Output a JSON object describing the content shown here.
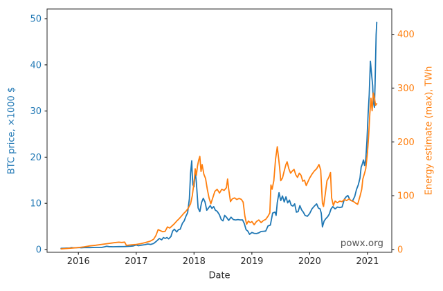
{
  "figure": {
    "watermark": "powx.org",
    "background_color": "#ffffff"
  },
  "chart_data": {
    "type": "line",
    "title": "",
    "xlabel": "Date",
    "ylabel_left": "BTC price, ×1000 $",
    "ylabel_right": "Energy estimate (max), TWh",
    "x_ticks": [
      2016,
      2017,
      2018,
      2019,
      2020,
      2021
    ],
    "y_ticks_left": [
      0,
      10,
      20,
      30,
      40,
      50
    ],
    "y_ticks_right": [
      0,
      100,
      200,
      300,
      400
    ],
    "xlim": [
      2015.458,
      2021.42
    ],
    "ylim_left": [
      -0.6,
      52.1
    ],
    "ylim_right": [
      -5.1,
      447
    ],
    "grid": false,
    "legend": "none",
    "colors": {
      "btc": "#1f77b4",
      "energy": "#ff7f0e",
      "axis": "#262626",
      "watermark": "#555555"
    },
    "series": [
      {
        "name": "BTC price, ×1000 $",
        "axis": "left",
        "color_key": "btc",
        "points": [
          [
            2015.7,
            0.25
          ],
          [
            2015.75,
            0.28
          ],
          [
            2015.8,
            0.31
          ],
          [
            2015.85,
            0.33
          ],
          [
            2015.88,
            0.42
          ],
          [
            2015.92,
            0.36
          ],
          [
            2016.0,
            0.43
          ],
          [
            2016.05,
            0.38
          ],
          [
            2016.1,
            0.42
          ],
          [
            2016.2,
            0.42
          ],
          [
            2016.3,
            0.45
          ],
          [
            2016.4,
            0.45
          ],
          [
            2016.45,
            0.58
          ],
          [
            2016.49,
            0.7
          ],
          [
            2016.53,
            0.63
          ],
          [
            2016.6,
            0.6
          ],
          [
            2016.65,
            0.61
          ],
          [
            2016.7,
            0.63
          ],
          [
            2016.8,
            0.64
          ],
          [
            2016.9,
            0.72
          ],
          [
            2016.95,
            0.78
          ],
          [
            2017.0,
            0.99
          ],
          [
            2017.04,
            0.82
          ],
          [
            2017.08,
            0.92
          ],
          [
            2017.15,
            1.05
          ],
          [
            2017.2,
            1.19
          ],
          [
            2017.25,
            1.1
          ],
          [
            2017.3,
            1.3
          ],
          [
            2017.35,
            1.8
          ],
          [
            2017.4,
            2.4
          ],
          [
            2017.44,
            2.1
          ],
          [
            2017.47,
            2.6
          ],
          [
            2017.5,
            2.4
          ],
          [
            2017.53,
            2.6
          ],
          [
            2017.56,
            2.3
          ],
          [
            2017.6,
            2.8
          ],
          [
            2017.63,
            4.0
          ],
          [
            2017.66,
            4.4
          ],
          [
            2017.7,
            3.8
          ],
          [
            2017.73,
            4.3
          ],
          [
            2017.76,
            4.4
          ],
          [
            2017.8,
            5.7
          ],
          [
            2017.83,
            6.2
          ],
          [
            2017.86,
            7.2
          ],
          [
            2017.89,
            8.0
          ],
          [
            2017.92,
            11.0
          ],
          [
            2017.94,
            16.5
          ],
          [
            2017.96,
            19.2
          ],
          [
            2017.97,
            16.0
          ],
          [
            2017.98,
            14.0
          ],
          [
            2018.0,
            13.6
          ],
          [
            2018.02,
            17.0
          ],
          [
            2018.04,
            14.5
          ],
          [
            2018.07,
            9.0
          ],
          [
            2018.1,
            8.2
          ],
          [
            2018.13,
            10.2
          ],
          [
            2018.16,
            11.1
          ],
          [
            2018.19,
            10.3
          ],
          [
            2018.22,
            8.5
          ],
          [
            2018.25,
            9.0
          ],
          [
            2018.28,
            9.5
          ],
          [
            2018.31,
            8.9
          ],
          [
            2018.34,
            9.3
          ],
          [
            2018.37,
            8.5
          ],
          [
            2018.4,
            8.3
          ],
          [
            2018.44,
            7.5
          ],
          [
            2018.47,
            6.5
          ],
          [
            2018.5,
            6.2
          ],
          [
            2018.53,
            7.4
          ],
          [
            2018.56,
            7.0
          ],
          [
            2018.6,
            6.3
          ],
          [
            2018.64,
            7.0
          ],
          [
            2018.68,
            6.5
          ],
          [
            2018.72,
            6.4
          ],
          [
            2018.76,
            6.5
          ],
          [
            2018.8,
            6.4
          ],
          [
            2018.84,
            6.4
          ],
          [
            2018.87,
            5.6
          ],
          [
            2018.9,
            4.3
          ],
          [
            2018.93,
            4.0
          ],
          [
            2018.96,
            3.3
          ],
          [
            2019.0,
            3.7
          ],
          [
            2019.04,
            3.5
          ],
          [
            2019.08,
            3.45
          ],
          [
            2019.12,
            3.6
          ],
          [
            2019.16,
            3.9
          ],
          [
            2019.2,
            3.95
          ],
          [
            2019.24,
            4.0
          ],
          [
            2019.28,
            5.1
          ],
          [
            2019.32,
            5.3
          ],
          [
            2019.36,
            7.9
          ],
          [
            2019.4,
            8.1
          ],
          [
            2019.42,
            7.4
          ],
          [
            2019.44,
            10.2
          ],
          [
            2019.47,
            12.3
          ],
          [
            2019.5,
            10.6
          ],
          [
            2019.53,
            11.6
          ],
          [
            2019.56,
            10.3
          ],
          [
            2019.59,
            11.4
          ],
          [
            2019.62,
            10.1
          ],
          [
            2019.65,
            10.7
          ],
          [
            2019.68,
            9.6
          ],
          [
            2019.71,
            9.4
          ],
          [
            2019.74,
            9.9
          ],
          [
            2019.77,
            8.1
          ],
          [
            2019.8,
            8.2
          ],
          [
            2019.83,
            9.5
          ],
          [
            2019.86,
            8.6
          ],
          [
            2019.89,
            8.1
          ],
          [
            2019.92,
            7.4
          ],
          [
            2019.96,
            7.2
          ],
          [
            2020.0,
            7.8
          ],
          [
            2020.04,
            8.8
          ],
          [
            2020.08,
            9.4
          ],
          [
            2020.12,
            9.9
          ],
          [
            2020.15,
            9.0
          ],
          [
            2020.18,
            8.8
          ],
          [
            2020.2,
            7.9
          ],
          [
            2020.22,
            4.9
          ],
          [
            2020.25,
            6.2
          ],
          [
            2020.28,
            6.7
          ],
          [
            2020.31,
            7.1
          ],
          [
            2020.34,
            7.7
          ],
          [
            2020.37,
            8.8
          ],
          [
            2020.4,
            9.3
          ],
          [
            2020.44,
            8.8
          ],
          [
            2020.48,
            9.2
          ],
          [
            2020.52,
            9.1
          ],
          [
            2020.56,
            9.2
          ],
          [
            2020.6,
            10.9
          ],
          [
            2020.63,
            11.4
          ],
          [
            2020.66,
            11.7
          ],
          [
            2020.7,
            10.7
          ],
          [
            2020.74,
            10.5
          ],
          [
            2020.78,
            11.5
          ],
          [
            2020.81,
            13.0
          ],
          [
            2020.84,
            14.0
          ],
          [
            2020.87,
            15.5
          ],
          [
            2020.89,
            17.8
          ],
          [
            2020.91,
            18.5
          ],
          [
            2020.93,
            19.4
          ],
          [
            2020.95,
            18.2
          ],
          [
            2020.97,
            19.5
          ],
          [
            2020.99,
            23.5
          ],
          [
            2021.01,
            29.3
          ],
          [
            2021.03,
            33.5
          ],
          [
            2021.05,
            40.8
          ],
          [
            2021.07,
            38.0
          ],
          [
            2021.09,
            35.5
          ],
          [
            2021.1,
            32.0
          ],
          [
            2021.12,
            30.8
          ],
          [
            2021.13,
            35.5
          ],
          [
            2021.15,
            46.5
          ],
          [
            2021.16,
            49.2
          ]
        ]
      },
      {
        "name": "Energy estimate (max), TWh",
        "axis": "right",
        "color_key": "energy",
        "points": [
          [
            2015.7,
            1.2
          ],
          [
            2015.8,
            2.0
          ],
          [
            2015.9,
            2.8
          ],
          [
            2016.0,
            3.6
          ],
          [
            2016.1,
            5.0
          ],
          [
            2016.2,
            6.8
          ],
          [
            2016.3,
            8.0
          ],
          [
            2016.4,
            9.5
          ],
          [
            2016.5,
            11.0
          ],
          [
            2016.57,
            12.0
          ],
          [
            2016.64,
            13.0
          ],
          [
            2016.7,
            13.6
          ],
          [
            2016.75,
            13.2
          ],
          [
            2016.8,
            13.8
          ],
          [
            2016.83,
            7.8
          ],
          [
            2016.88,
            8.4
          ],
          [
            2016.94,
            9.0
          ],
          [
            2017.0,
            9.6
          ],
          [
            2017.08,
            11.0
          ],
          [
            2017.16,
            13.0
          ],
          [
            2017.24,
            15.5
          ],
          [
            2017.3,
            19.0
          ],
          [
            2017.34,
            26.0
          ],
          [
            2017.38,
            37.0
          ],
          [
            2017.42,
            35.0
          ],
          [
            2017.46,
            33.0
          ],
          [
            2017.5,
            34.0
          ],
          [
            2017.54,
            42.0
          ],
          [
            2017.58,
            40.0
          ],
          [
            2017.62,
            44.0
          ],
          [
            2017.66,
            48.0
          ],
          [
            2017.7,
            53.0
          ],
          [
            2017.74,
            57.0
          ],
          [
            2017.78,
            62.0
          ],
          [
            2017.82,
            67.0
          ],
          [
            2017.86,
            71.0
          ],
          [
            2017.9,
            77.0
          ],
          [
            2017.94,
            85.0
          ],
          [
            2017.97,
            100.0
          ],
          [
            2018.0,
            125.0
          ],
          [
            2018.02,
            150.0
          ],
          [
            2018.04,
            138.0
          ],
          [
            2018.06,
            155.0
          ],
          [
            2018.08,
            166.0
          ],
          [
            2018.1,
            173.0
          ],
          [
            2018.12,
            145.0
          ],
          [
            2018.14,
            158.0
          ],
          [
            2018.17,
            140.0
          ],
          [
            2018.2,
            132.0
          ],
          [
            2018.23,
            112.0
          ],
          [
            2018.26,
            96.0
          ],
          [
            2018.29,
            85.0
          ],
          [
            2018.32,
            95.0
          ],
          [
            2018.36,
            108.0
          ],
          [
            2018.4,
            112.0
          ],
          [
            2018.44,
            105.0
          ],
          [
            2018.48,
            112.0
          ],
          [
            2018.52,
            110.0
          ],
          [
            2018.56,
            115.0
          ],
          [
            2018.58,
            131.0
          ],
          [
            2018.6,
            112.0
          ],
          [
            2018.63,
            89.0
          ],
          [
            2018.66,
            94.0
          ],
          [
            2018.7,
            96.0
          ],
          [
            2018.74,
            93.0
          ],
          [
            2018.78,
            95.0
          ],
          [
            2018.82,
            93.0
          ],
          [
            2018.85,
            88.0
          ],
          [
            2018.88,
            62.0
          ],
          [
            2018.91,
            47.0
          ],
          [
            2018.94,
            53.0
          ],
          [
            2018.97,
            50.0
          ],
          [
            2019.0,
            52.0
          ],
          [
            2019.04,
            46.0
          ],
          [
            2019.08,
            52.0
          ],
          [
            2019.12,
            55.0
          ],
          [
            2019.16,
            50.0
          ],
          [
            2019.2,
            54.0
          ],
          [
            2019.24,
            56.0
          ],
          [
            2019.28,
            62.0
          ],
          [
            2019.31,
            68.0
          ],
          [
            2019.33,
            120.0
          ],
          [
            2019.35,
            112.0
          ],
          [
            2019.38,
            128.0
          ],
          [
            2019.41,
            168.0
          ],
          [
            2019.44,
            191.0
          ],
          [
            2019.46,
            172.0
          ],
          [
            2019.48,
            152.0
          ],
          [
            2019.5,
            128.0
          ],
          [
            2019.53,
            133.0
          ],
          [
            2019.56,
            146.0
          ],
          [
            2019.59,
            158.0
          ],
          [
            2019.61,
            163.0
          ],
          [
            2019.64,
            150.0
          ],
          [
            2019.67,
            142.0
          ],
          [
            2019.7,
            146.0
          ],
          [
            2019.73,
            149.0
          ],
          [
            2019.76,
            139.0
          ],
          [
            2019.79,
            134.0
          ],
          [
            2019.82,
            142.0
          ],
          [
            2019.85,
            138.0
          ],
          [
            2019.88,
            127.0
          ],
          [
            2019.91,
            129.0
          ],
          [
            2019.94,
            119.0
          ],
          [
            2019.97,
            126.0
          ],
          [
            2020.0,
            133.0
          ],
          [
            2020.04,
            140.0
          ],
          [
            2020.08,
            146.0
          ],
          [
            2020.12,
            150.0
          ],
          [
            2020.16,
            158.0
          ],
          [
            2020.19,
            148.0
          ],
          [
            2020.22,
            86.0
          ],
          [
            2020.24,
            80.0
          ],
          [
            2020.27,
            103.0
          ],
          [
            2020.3,
            128.0
          ],
          [
            2020.33,
            134.0
          ],
          [
            2020.36,
            143.0
          ],
          [
            2020.38,
            96.0
          ],
          [
            2020.41,
            82.0
          ],
          [
            2020.44,
            90.0
          ],
          [
            2020.48,
            87.0
          ],
          [
            2020.52,
            90.0
          ],
          [
            2020.56,
            89.0
          ],
          [
            2020.6,
            93.0
          ],
          [
            2020.64,
            91.0
          ],
          [
            2020.68,
            94.0
          ],
          [
            2020.72,
            91.0
          ],
          [
            2020.76,
            89.0
          ],
          [
            2020.8,
            86.0
          ],
          [
            2020.83,
            84.0
          ],
          [
            2020.87,
            99.0
          ],
          [
            2020.9,
            112.0
          ],
          [
            2020.92,
            131.0
          ],
          [
            2020.95,
            142.0
          ],
          [
            2020.97,
            150.0
          ],
          [
            2021.0,
            180.0
          ],
          [
            2021.02,
            212.0
          ],
          [
            2021.04,
            252.0
          ],
          [
            2021.06,
            281.0
          ],
          [
            2021.08,
            258.0
          ],
          [
            2021.1,
            291.0
          ],
          [
            2021.12,
            282.0
          ],
          [
            2021.14,
            268.0
          ],
          [
            2021.16,
            271.0
          ]
        ]
      }
    ]
  }
}
